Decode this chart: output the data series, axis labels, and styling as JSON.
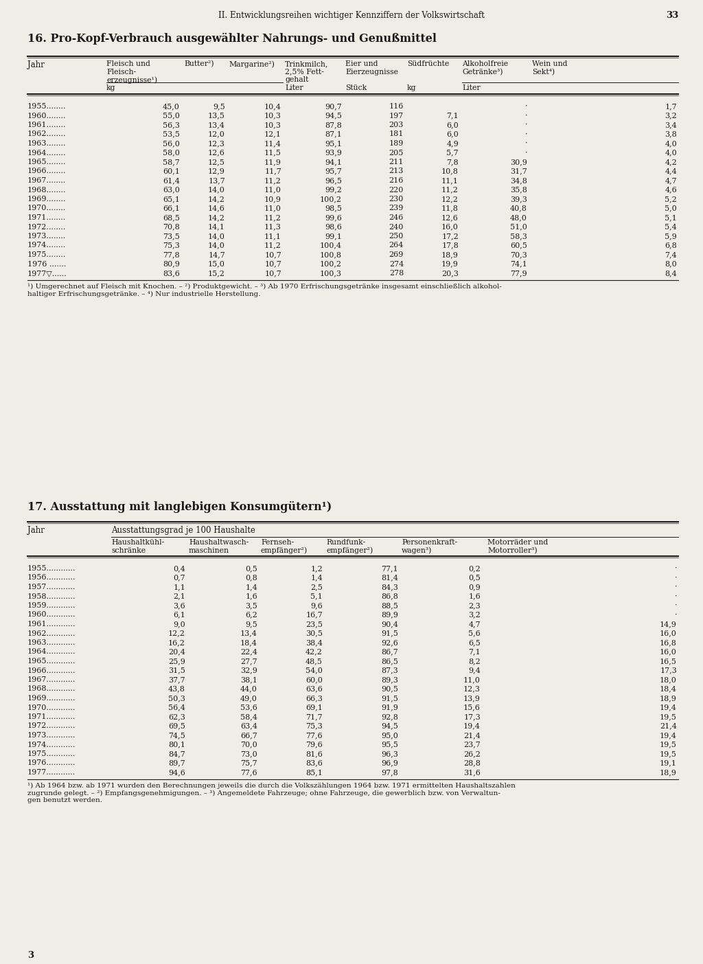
{
  "page_header": "II. Entwicklungsreihen wichtiger Kennziffern der Volkswirtschaft",
  "page_number": "33",
  "table1_title": "16. Pro-Kopf-Verbrauch ausgewählter Nahrungs- und Genußmittel",
  "table1_data": [
    [
      "1955........",
      "45,0",
      "9,5",
      "10,4",
      "90,7",
      "116",
      "",
      "·",
      "1,7"
    ],
    [
      "1960........",
      "55,0",
      "13,5",
      "10,3",
      "94,5",
      "197",
      "7,1",
      "·",
      "3,2"
    ],
    [
      "1961........",
      "56,3",
      "13,4",
      "10,3",
      "87,8",
      "203",
      "6,0",
      "·",
      "3,4"
    ],
    [
      "1962........",
      "53,5",
      "12,0",
      "12,1",
      "87,1",
      "181",
      "6,0",
      "·",
      "3,8"
    ],
    [
      "1963........",
      "56,0",
      "12,3",
      "11,4",
      "95,1",
      "189",
      "4,9",
      "·",
      "4,0"
    ],
    [
      "1964........",
      "58,0",
      "12,6",
      "11,5",
      "93,9",
      "205",
      "5,7",
      "·",
      "4,0"
    ],
    [
      "1965........",
      "58,7",
      "12,5",
      "11,9",
      "94,1",
      "211",
      "7,8",
      "30,9",
      "4,2"
    ],
    [
      "1966........",
      "60,1",
      "12,9",
      "11,7",
      "95,7",
      "213",
      "10,8",
      "31,7",
      "4,4"
    ],
    [
      "1967........",
      "61,4",
      "13,7",
      "11,2",
      "96,5",
      "216",
      "11,1",
      "34,8",
      "4,7"
    ],
    [
      "1968........",
      "63,0",
      "14,0",
      "11,0",
      "99,2",
      "220",
      "11,2",
      "35,8",
      "4,6"
    ],
    [
      "1969........",
      "65,1",
      "14,2",
      "10,9",
      "100,2",
      "230",
      "12,2",
      "39,3",
      "5,2"
    ],
    [
      "1970........",
      "66,1",
      "14,6",
      "11,0",
      "98,5",
      "239",
      "11,8",
      "40,8",
      "5,0"
    ],
    [
      "1971........",
      "68,5",
      "14,2",
      "11,2",
      "99,6",
      "246",
      "12,6",
      "48,0",
      "5,1"
    ],
    [
      "1972........",
      "70,8",
      "14,1",
      "11,3",
      "98,6",
      "240",
      "16,0",
      "51,0",
      "5,4"
    ],
    [
      "1973........",
      "73,5",
      "14,0",
      "11,1",
      "99,1",
      "250",
      "17,2",
      "58,3",
      "5,9"
    ],
    [
      "1974........",
      "75,3",
      "14,0",
      "11,2",
      "100,4",
      "264",
      "17,8",
      "60,5",
      "6,8"
    ],
    [
      "1975........",
      "77,8",
      "14,7",
      "10,7",
      "100,8",
      "269",
      "18,9",
      "70,3",
      "7,4"
    ],
    [
      "1976 .......",
      "80,9",
      "15,0",
      "10,7",
      "100,2",
      "274",
      "19,9",
      "74,1",
      "8,0"
    ],
    [
      "1977▽......",
      "83,6",
      "15,2",
      "10,7",
      "100,3",
      "278",
      "20,3",
      "77,9",
      "8,4"
    ]
  ],
  "table1_footnote_line1": "¹) Umgerechnet auf Fleisch mit Knochen. – ²) Produktgewicht. – ³) Ab 1970 Erfrischungsgetränke insgesamt einschließlich alkohol-",
  "table1_footnote_line2": "haltiger Erfrischungsgetränke. – ⁴) Nur industrielle Herstellung.",
  "table2_title": "17. Ausstattung mit langlebigen Konsumgütern¹)",
  "table2_subheader": "Ausstattungsgrad je 100 Haushalte",
  "table2_data": [
    [
      "1955............",
      "0,4",
      "0,5",
      "1,2",
      "77,1",
      "0,2",
      "·"
    ],
    [
      "1956............",
      "0,7",
      "0,8",
      "1,4",
      "81,4",
      "0,5",
      "·"
    ],
    [
      "1957............",
      "1,1",
      "1,4",
      "2,5",
      "84,3",
      "0,9",
      "·"
    ],
    [
      "1958............",
      "2,1",
      "1,6",
      "5,1",
      "86,8",
      "1,6",
      "·"
    ],
    [
      "1959............",
      "3,6",
      "3,5",
      "9,6",
      "88,5",
      "2,3",
      "·"
    ],
    [
      "1960............",
      "6,1",
      "6,2",
      "16,7",
      "89,9",
      "3,2",
      "·"
    ],
    [
      "1961............",
      "9,0",
      "9,5",
      "23,5",
      "90,4",
      "4,7",
      "14,9"
    ],
    [
      "1962............",
      "12,2",
      "13,4",
      "30,5",
      "91,5",
      "5,6",
      "16,0"
    ],
    [
      "1963............",
      "16,2",
      "18,4",
      "38,4",
      "92,6",
      "6,5",
      "16,8"
    ],
    [
      "1964............",
      "20,4",
      "22,4",
      "42,2",
      "86,7",
      "7,1",
      "16,0"
    ],
    [
      "1965............",
      "25,9",
      "27,7",
      "48,5",
      "86,5",
      "8,2",
      "16,5"
    ],
    [
      "1966............",
      "31,5",
      "32,9",
      "54,0",
      "87,3",
      "9,4",
      "17,3"
    ],
    [
      "1967............",
      "37,7",
      "38,1",
      "60,0",
      "89,3",
      "11,0",
      "18,0"
    ],
    [
      "1968............",
      "43,8",
      "44,0",
      "63,6",
      "90,5",
      "12,3",
      "18,4"
    ],
    [
      "1969............",
      "50,3",
      "49,0",
      "66,3",
      "91,5",
      "13,9",
      "18,9"
    ],
    [
      "1970............",
      "56,4",
      "53,6",
      "69,1",
      "91,9",
      "15,6",
      "19,4"
    ],
    [
      "1971............",
      "62,3",
      "58,4",
      "71,7",
      "92,8",
      "17,3",
      "19,5"
    ],
    [
      "1972............",
      "69,5",
      "63,4",
      "75,3",
      "94,5",
      "19,4",
      "21,4"
    ],
    [
      "1973............",
      "74,5",
      "66,7",
      "77,6",
      "95,0",
      "21,4",
      "19,4"
    ],
    [
      "1974............",
      "80,1",
      "70,0",
      "79,6",
      "95,5",
      "23,7",
      "19,5"
    ],
    [
      "1975............",
      "84,7",
      "73,0",
      "81,6",
      "96,3",
      "26,2",
      "19,5"
    ],
    [
      "1976............",
      "89,7",
      "75,7",
      "83,6",
      "96,9",
      "28,8",
      "19,1"
    ],
    [
      "1977............",
      "94,6",
      "77,6",
      "85,1",
      "97,8",
      "31,6",
      "18,9"
    ]
  ],
  "table2_footnote_line1": "¹) Ab 1964 bzw. ab 1971 wurden den Berechnungen jeweils die durch die Volkszählungen 1964 bzw. 1971 ermittelten Haushaltszahlen",
  "table2_footnote_line2": "zugrunde gelegt. – ²) Empfangsgenehmigungen. – ³) Angemeldete Fahrzeuge; ohne Fahrzeuge, die gewerblich bzw. von Verwaltun-",
  "table2_footnote_line3": "gen benutzt werden.",
  "footer_page_number": "3",
  "bg_color": "#f0ede6",
  "text_color": "#1a1a1a",
  "line_color": "#1a1a1a"
}
